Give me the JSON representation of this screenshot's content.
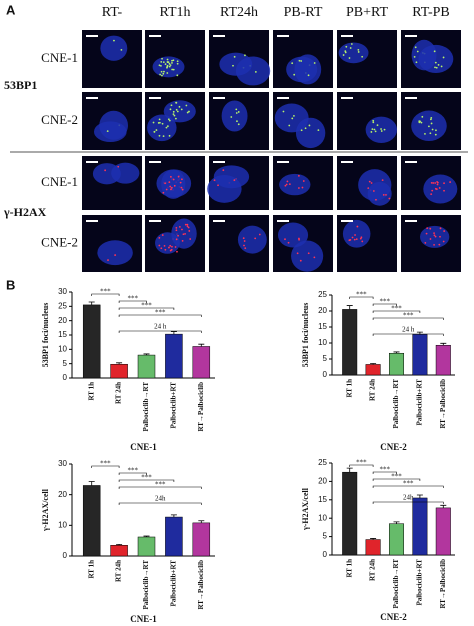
{
  "panel_labels": [
    "A",
    "B"
  ],
  "columns": [
    "RT-",
    "RT1h",
    "RT24h",
    "PB-RT",
    "PB+RT",
    "RT-PB"
  ],
  "groups": [
    {
      "label": "53BP1",
      "rows": [
        "CNE-1",
        "CNE-2"
      ]
    },
    {
      "label": "γ-H2AX",
      "rows": [
        "CNE-1",
        "CNE-2"
      ]
    }
  ],
  "chart_data": [
    {
      "type": "bar",
      "title": "CNE-1",
      "y_label": "53BP1 foci/nucleus",
      "categories": [
        "RT 1h",
        "RT 24h",
        "Palbociclib→RT",
        "Palbociclib+RT",
        "RT→Palbociclib"
      ],
      "values": [
        25.5,
        4.8,
        8,
        15.3,
        11
      ],
      "errors": [
        1,
        0.5,
        0.4,
        0.9,
        0.8
      ],
      "colors": [
        "#262626",
        "#e0242b",
        "#66bb6a",
        "#1f2b9e",
        "#b2369e"
      ],
      "ylim": [
        0,
        30
      ],
      "yticks": [
        0,
        5,
        10,
        15,
        20,
        25,
        30
      ],
      "significance": [
        "***",
        "***",
        "***",
        "***"
      ],
      "span_label": "24 h"
    },
    {
      "type": "bar",
      "title": "CNE-2",
      "y_label": "53BP1 foci/nucleus",
      "categories": [
        "RT 1h",
        "RT 24h",
        "Palbociclib→RT",
        "Palbociclib+RT",
        "RT→Palbociclib"
      ],
      "values": [
        20.5,
        3.3,
        6.8,
        12.7,
        9.3
      ],
      "errors": [
        1.2,
        0.3,
        0.4,
        0.7,
        0.6
      ],
      "colors": [
        "#262626",
        "#e0242b",
        "#66bb6a",
        "#1f2b9e",
        "#b2369e"
      ],
      "ylim": [
        0,
        25
      ],
      "yticks": [
        0,
        5,
        10,
        15,
        20,
        25
      ],
      "significance": [
        "***",
        "***",
        "***",
        "***"
      ],
      "span_label": "24 h"
    },
    {
      "type": "bar",
      "title": "CNE-1",
      "y_label": "γ-H2AX/cell",
      "categories": [
        "RT 1h",
        "RT 24h",
        "Palbociclib→RT",
        "Palbociclib+RT",
        "RT→Palbociclib"
      ],
      "values": [
        23,
        3.5,
        6.2,
        12.7,
        10.8
      ],
      "errors": [
        1.3,
        0.3,
        0.3,
        0.7,
        0.7
      ],
      "colors": [
        "#262626",
        "#e0242b",
        "#66bb6a",
        "#1f2b9e",
        "#b2369e"
      ],
      "ylim": [
        0,
        30
      ],
      "yticks": [
        0,
        10,
        20,
        30
      ],
      "significance": [
        "***",
        "***",
        "***",
        "***"
      ],
      "span_label": "24h"
    },
    {
      "type": "bar",
      "title": "CNE-2",
      "y_label": "γ-H2AX/cell",
      "categories": [
        "RT 1h",
        "RT 24h",
        "Palbociclib→RT",
        "Palbociclib+RT",
        "RT→Palbociclib"
      ],
      "values": [
        22.5,
        4.2,
        8.5,
        15.5,
        12.8
      ],
      "errors": [
        1.1,
        0.3,
        0.5,
        0.8,
        0.7
      ],
      "colors": [
        "#262626",
        "#e0242b",
        "#66bb6a",
        "#1f2b9e",
        "#b2369e"
      ],
      "ylim": [
        0,
        25
      ],
      "yticks": [
        0,
        5,
        10,
        15,
        20,
        25
      ],
      "significance": [
        "***",
        "***",
        "***",
        "***"
      ],
      "span_label": "24h"
    }
  ]
}
